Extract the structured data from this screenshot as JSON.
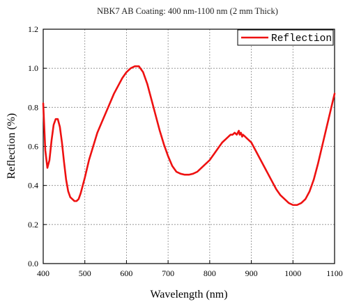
{
  "chart_data": {
    "type": "line",
    "title": "NBK7 AB Coating: 400 nm-1100 nm (2 mm Thick)",
    "xlabel": "Wavelength (nm)",
    "ylabel": "Reflection (%)",
    "xlim": [
      400,
      1100
    ],
    "ylim": [
      0.0,
      1.2
    ],
    "xticks": [
      "400",
      "500",
      "600",
      "700",
      "800",
      "900",
      "1000",
      "1100"
    ],
    "yticks": [
      "0.0",
      "0.2",
      "0.4",
      "0.6",
      "0.8",
      "1.0",
      "1.2"
    ],
    "grid": true,
    "legend_position": "top-right",
    "series": [
      {
        "name": "Reflection",
        "color": "#ee1111",
        "x": [
          400,
          405,
          410,
          415,
          420,
          425,
          430,
          435,
          440,
          445,
          450,
          455,
          460,
          465,
          470,
          475,
          480,
          485,
          490,
          495,
          500,
          510,
          520,
          530,
          540,
          550,
          560,
          570,
          580,
          590,
          600,
          610,
          620,
          625,
          630,
          640,
          650,
          660,
          670,
          680,
          690,
          700,
          710,
          720,
          730,
          740,
          750,
          760,
          770,
          780,
          790,
          800,
          810,
          820,
          830,
          840,
          850,
          855,
          860,
          865,
          870,
          872,
          875,
          878,
          880,
          885,
          890,
          900,
          910,
          920,
          930,
          940,
          950,
          960,
          970,
          980,
          990,
          1000,
          1010,
          1020,
          1030,
          1040,
          1050,
          1060,
          1070,
          1080,
          1090,
          1100
        ],
        "y": [
          0.82,
          0.58,
          0.49,
          0.53,
          0.63,
          0.71,
          0.74,
          0.74,
          0.7,
          0.62,
          0.52,
          0.43,
          0.37,
          0.34,
          0.33,
          0.32,
          0.32,
          0.33,
          0.36,
          0.4,
          0.44,
          0.53,
          0.6,
          0.67,
          0.72,
          0.77,
          0.82,
          0.87,
          0.91,
          0.95,
          0.98,
          1.0,
          1.01,
          1.01,
          1.01,
          0.98,
          0.92,
          0.84,
          0.76,
          0.68,
          0.61,
          0.55,
          0.5,
          0.47,
          0.46,
          0.455,
          0.455,
          0.46,
          0.47,
          0.49,
          0.51,
          0.53,
          0.56,
          0.59,
          0.62,
          0.64,
          0.66,
          0.66,
          0.67,
          0.66,
          0.68,
          0.66,
          0.67,
          0.65,
          0.66,
          0.65,
          0.64,
          0.62,
          0.58,
          0.54,
          0.5,
          0.46,
          0.42,
          0.38,
          0.35,
          0.33,
          0.31,
          0.3,
          0.3,
          0.31,
          0.33,
          0.37,
          0.43,
          0.51,
          0.6,
          0.69,
          0.78,
          0.87
        ]
      }
    ]
  }
}
